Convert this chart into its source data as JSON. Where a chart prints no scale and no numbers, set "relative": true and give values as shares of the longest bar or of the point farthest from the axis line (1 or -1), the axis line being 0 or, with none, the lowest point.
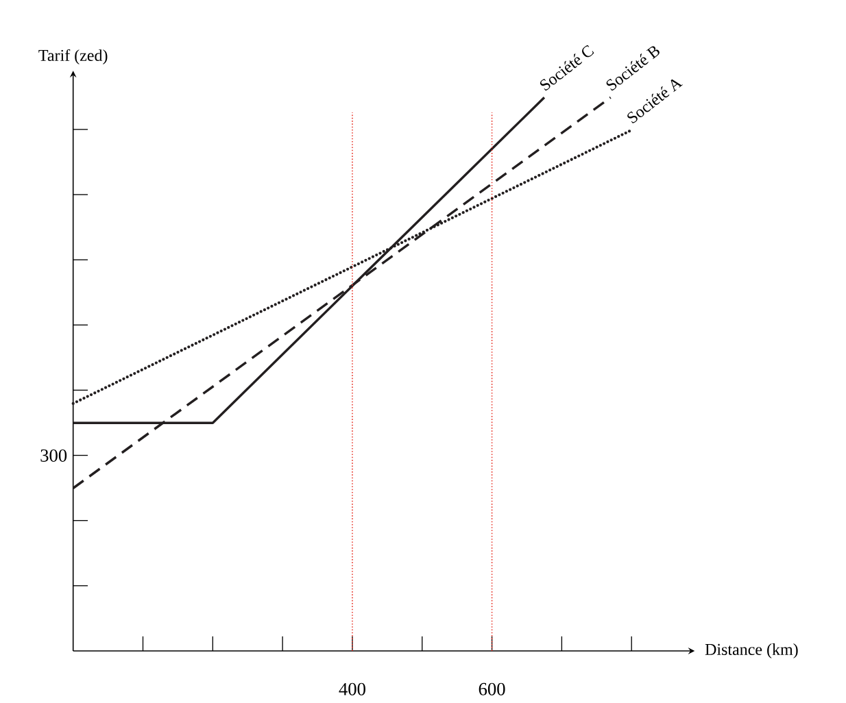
{
  "chart_data": {
    "type": "line",
    "xlabel": "Distance (km)",
    "ylabel": "Tarif (zed)",
    "relative": true,
    "xlim": [
      0,
      880
    ],
    "xticks": [
      {
        "value": 100,
        "label": null
      },
      {
        "value": 200,
        "label": null
      },
      {
        "value": 300,
        "label": null
      },
      400,
      {
        "value": 500,
        "label": null
      },
      600,
      {
        "value": 700,
        "label": null
      },
      {
        "value": 800,
        "label": null
      }
    ],
    "annotations": [
      "300"
    ],
    "series": [
      {
        "name": "Société A",
        "color": "#231f20",
        "line_style": "dotted",
        "x": [
          0,
          800
        ],
        "values": [
          0.447,
          0.941
        ]
      },
      {
        "name": "Société B",
        "color": "#231f20",
        "line_style": "dashed",
        "x": [
          0,
          770
        ],
        "values": [
          0.294,
          1
        ]
      },
      {
        "name": "Société C",
        "color": "#231f20",
        "line_style": "solid",
        "x": [
          0,
          200,
          675
        ],
        "values": [
          0.412,
          0.412,
          1
        ]
      }
    ],
    "ref_lines": [
      {
        "axis": "x",
        "value": 400,
        "color": "#e8382c",
        "line_style": "dotted"
      },
      {
        "axis": "x",
        "value": 600,
        "color": "#e8382c",
        "line_style": "dotted"
      }
    ],
    "grid": false
  }
}
